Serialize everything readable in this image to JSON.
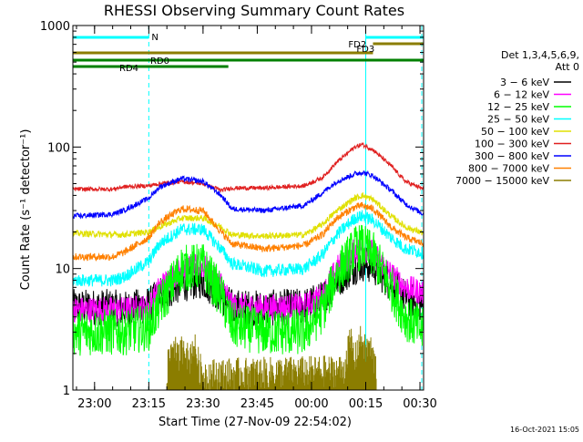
{
  "chart_data": {
    "type": "line",
    "title": "RHESSI Observing Summary Count Rates",
    "xlabel": "Start Time (27-Nov-09 22:54:02)",
    "ylabel": "Count Rate (s⁻¹ detector⁻¹)",
    "y_scale": "log",
    "ylim": [
      1,
      1000
    ],
    "xlim_minutes": [
      0,
      97
    ],
    "x_ticks": [
      {
        "label": "23:00",
        "minute": 6
      },
      {
        "label": "23:15",
        "minute": 21
      },
      {
        "label": "23:30",
        "minute": 36
      },
      {
        "label": "23:45",
        "minute": 51
      },
      {
        "label": "00:00",
        "minute": 66
      },
      {
        "label": "00:15",
        "minute": 81
      },
      {
        "label": "00:30",
        "minute": 96
      }
    ],
    "y_ticks": [
      {
        "label": "1",
        "value": 1
      },
      {
        "label": "10",
        "value": 10
      },
      {
        "label": "100",
        "value": 100
      },
      {
        "label": "1000",
        "value": 1000
      }
    ],
    "legend_header": [
      "Det 1,3,4,5,6,9,",
      "Att 0"
    ],
    "legend_position": "right",
    "series": [
      {
        "name": "3 − 6 keV",
        "color": "#000000",
        "x": [
          0,
          11,
          14,
          21,
          24,
          30,
          36,
          41,
          44,
          53,
          64,
          69,
          73,
          78,
          80,
          83,
          88,
          92,
          97
        ],
        "y": [
          4.8,
          4.8,
          4.6,
          5.0,
          6.0,
          7.5,
          8.0,
          6.0,
          4.8,
          4.7,
          4.9,
          5.6,
          8.0,
          10.5,
          11.0,
          10.5,
          7.5,
          5.8,
          5.0
        ]
      },
      {
        "name": "6 − 12 keV",
        "color": "#ff00ff",
        "x": [
          0,
          11,
          14,
          21,
          24,
          30,
          36,
          41,
          44,
          53,
          64,
          69,
          73,
          78,
          80,
          83,
          88,
          92,
          97
        ],
        "y": [
          4.6,
          4.6,
          4.6,
          4.8,
          7.0,
          10.0,
          10.5,
          7.5,
          4.9,
          4.8,
          4.9,
          6.0,
          10.0,
          14.0,
          14.5,
          13.5,
          9.0,
          7.0,
          6.3
        ]
      },
      {
        "name": "12 − 25 keV",
        "color": "#00ff00",
        "x": [
          0,
          11,
          14,
          21,
          24,
          30,
          36,
          41,
          44,
          53,
          64,
          69,
          73,
          78,
          80,
          83,
          88,
          92,
          97
        ],
        "y": [
          3.0,
          3.0,
          3.0,
          3.3,
          5.0,
          10.0,
          10.5,
          6.0,
          3.4,
          3.0,
          3.0,
          4.5,
          9.0,
          14.5,
          15.0,
          13.0,
          7.0,
          4.0,
          3.0
        ]
      },
      {
        "name": "25 − 50 keV",
        "color": "#00ffff",
        "x": [
          0,
          11,
          14,
          21,
          24,
          30,
          36,
          41,
          44,
          53,
          64,
          69,
          73,
          78,
          80,
          83,
          88,
          92,
          97
        ],
        "y": [
          8.0,
          8.0,
          8.5,
          11.5,
          16.0,
          21.0,
          21.0,
          14.5,
          11.0,
          9.5,
          10.0,
          13.0,
          19.0,
          26.0,
          27.0,
          25.0,
          18.0,
          14.5,
          13.5
        ]
      },
      {
        "name": "50 − 100 keV",
        "color": "#e0e000",
        "x": [
          0,
          11,
          14,
          21,
          24,
          30,
          36,
          41,
          44,
          53,
          64,
          69,
          73,
          78,
          80,
          83,
          88,
          92,
          97
        ],
        "y": [
          19.5,
          19.0,
          19.0,
          20.0,
          22.0,
          26.0,
          26.0,
          22.0,
          19.0,
          18.5,
          19.0,
          23.0,
          30.0,
          38.0,
          40.0,
          37.0,
          27.0,
          22.0,
          19.5
        ]
      },
      {
        "name": "100 − 300 keV",
        "color": "#e02020",
        "x": [
          0,
          11,
          14,
          21,
          24,
          30,
          36,
          41,
          44,
          53,
          64,
          69,
          73,
          78,
          80,
          83,
          88,
          92,
          97
        ],
        "y": [
          45.0,
          45.0,
          47.0,
          48.0,
          50.0,
          52.0,
          50.0,
          44.0,
          46.0,
          46.0,
          48.0,
          56.0,
          75.0,
          100.0,
          105.0,
          95.0,
          70.0,
          52.0,
          45.0
        ]
      },
      {
        "name": "300 − 800 keV",
        "color": "#0000ff",
        "x": [
          0,
          11,
          14,
          21,
          24,
          30,
          36,
          41,
          44,
          53,
          64,
          69,
          73,
          78,
          80,
          83,
          88,
          92,
          97
        ],
        "y": [
          27.0,
          28.0,
          30.0,
          38.0,
          47.0,
          55.0,
          52.0,
          40.0,
          31.0,
          30.0,
          33.0,
          42.0,
          52.0,
          60.0,
          62.0,
          58.0,
          44.0,
          34.0,
          28.0
        ]
      },
      {
        "name": "800 − 7000 keV",
        "color": "#ff8000",
        "x": [
          0,
          11,
          14,
          21,
          24,
          30,
          36,
          41,
          44,
          53,
          64,
          69,
          73,
          78,
          80,
          83,
          88,
          92,
          97
        ],
        "y": [
          12.5,
          12.5,
          13.5,
          18.0,
          24.0,
          31.0,
          30.0,
          20.0,
          16.0,
          14.5,
          15.5,
          19.0,
          26.0,
          32.0,
          33.0,
          31.0,
          22.0,
          18.0,
          16.0
        ]
      },
      {
        "name": "7000 − 15000 keV",
        "color": "#8b7d00",
        "x": [
          26,
          27,
          28,
          29,
          30,
          31,
          32,
          33,
          34,
          35,
          36,
          75,
          76,
          77,
          78,
          79,
          80,
          81,
          82,
          83,
          84
        ],
        "y": [
          1.5,
          2.1,
          2.6,
          1.8,
          2.2,
          2.6,
          1.7,
          2.4,
          2.2,
          1.6,
          1.4,
          1.5,
          2.2,
          2.6,
          1.8,
          2.5,
          2.7,
          2.1,
          2.4,
          1.9,
          1.5
        ]
      }
    ],
    "flag_bars": [
      {
        "label": "N",
        "color": "#00ffff",
        "start": 0,
        "end": 21,
        "level": 1
      },
      {
        "label": "",
        "color": "#00ffff",
        "start": 81,
        "end": 97,
        "level": 1
      },
      {
        "label": "FD2",
        "color": "#8b7d00",
        "start": 83,
        "end": 97,
        "level": 2
      },
      {
        "label": "FD3",
        "color": "#8b7d00",
        "start": 0,
        "end": 83,
        "level": 3
      },
      {
        "label": "RD0",
        "color": "#008000",
        "start": 0,
        "end": 97,
        "level": 4
      },
      {
        "label": "RD4",
        "color": "#008000",
        "start": 0,
        "end": 43,
        "level": 5
      }
    ],
    "vertical_markers": [
      {
        "minute": 0,
        "style": "solid"
      },
      {
        "minute": 21,
        "style": "dashed"
      },
      {
        "minute": 81,
        "style": "solid"
      },
      {
        "minute": 96.5,
        "style": "dashed"
      }
    ],
    "marker_color": "#00ffff",
    "timestamp": "16-Oct-2021 15:05"
  }
}
